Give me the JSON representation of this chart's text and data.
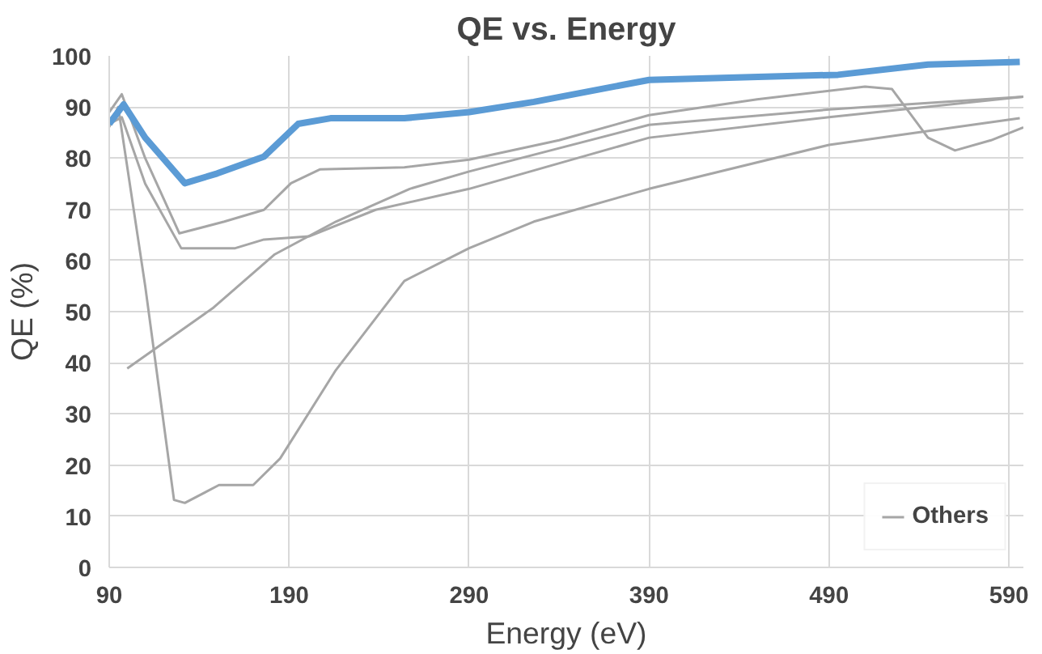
{
  "chart_data": {
    "type": "line",
    "title": "QE vs. Energy",
    "xlabel": "Energy (eV)",
    "ylabel": "QE (%)",
    "xlim": [
      90,
      598
    ],
    "xticks": [
      90,
      190,
      290,
      390,
      490,
      590
    ],
    "ylim": [
      0,
      100
    ],
    "yticks": [
      0,
      10,
      20,
      30,
      40,
      50,
      60,
      70,
      80,
      90,
      100
    ],
    "grid": true,
    "legend": "bottom right",
    "line_style": "solid",
    "series": [
      {
        "color": "#5b9bd5",
        "x": [
          90,
          98,
          110,
          132,
          150,
          176,
          195,
          213,
          254,
          290,
          326,
          390,
          495,
          545,
          596
        ],
        "values": [
          86.7,
          90.5,
          84,
          75.1,
          77,
          80.3,
          86.7,
          87.8,
          87.8,
          89,
          91,
          95.3,
          96.3,
          98.3,
          98.8
        ]
      },
      {
        "name": "Others",
        "color": "#a6a6a6",
        "x": [
          90,
          97,
          110,
          129,
          154,
          176,
          191,
          207,
          254,
          290,
          340,
          390,
          450,
          510,
          525,
          545,
          560,
          580,
          598
        ],
        "values": [
          89,
          92.5,
          80,
          65.3,
          67.6,
          69.9,
          75.1,
          77.8,
          78.2,
          79.7,
          83.5,
          88.4,
          91.5,
          94,
          93.5,
          84,
          81.5,
          83.5,
          86
        ]
      },
      {
        "color": "#a6a6a6",
        "x": [
          90,
          97,
          110,
          130,
          160,
          176,
          201,
          238,
          290,
          390,
          490,
          598
        ],
        "values": [
          86.7,
          88,
          75,
          62.4,
          62.4,
          64.1,
          64.7,
          69.9,
          74,
          84,
          88,
          92
        ]
      },
      {
        "color": "#a6a6a6",
        "x": [
          100,
          148,
          182,
          216,
          257,
          290,
          390,
          490,
          598
        ],
        "values": [
          38.9,
          50.8,
          61.2,
          67.6,
          74,
          77.4,
          86.5,
          89.5,
          92
        ]
      },
      {
        "color": "#a6a6a6",
        "x": [
          90,
          95,
          110,
          126,
          132,
          151,
          170,
          185,
          216,
          254,
          290,
          326,
          390,
          490,
          596
        ],
        "values": [
          86.1,
          90,
          55,
          13.2,
          12.6,
          16.1,
          16.1,
          21.3,
          38.6,
          56,
          62.4,
          67.6,
          74,
          82.6,
          87.8
        ]
      }
    ]
  }
}
